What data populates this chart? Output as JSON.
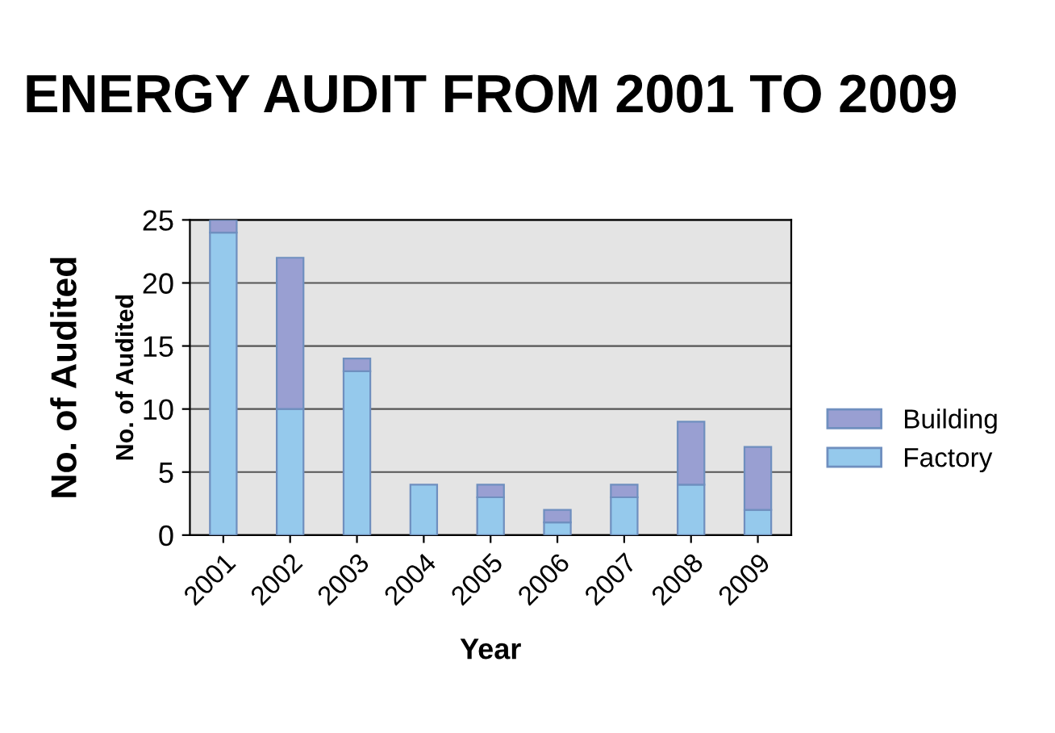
{
  "chart_data": {
    "type": "bar",
    "title": "ENERGY AUDIT FROM 2001 TO 2009",
    "xlabel": "Year",
    "ylabel": "No. of Audited",
    "annotations": [
      "No. of Audited"
    ],
    "categories": [
      "2001",
      "2002",
      "2003",
      "2004",
      "2005",
      "2006",
      "2007",
      "2008",
      "2009"
    ],
    "stacked": true,
    "series": [
      {
        "name": "Factory",
        "color": "#95c9ec",
        "values": [
          24,
          10,
          13,
          4,
          3,
          1,
          3,
          4,
          2
        ]
      },
      {
        "name": "Building",
        "color": "#999fd2",
        "values": [
          1,
          12,
          1,
          null,
          1,
          1,
          1,
          5,
          5
        ]
      }
    ],
    "ylim": [
      0,
      25
    ],
    "yticks": [
      0,
      5,
      10,
      15,
      20,
      25
    ],
    "grid": "y",
    "legend": "right"
  }
}
